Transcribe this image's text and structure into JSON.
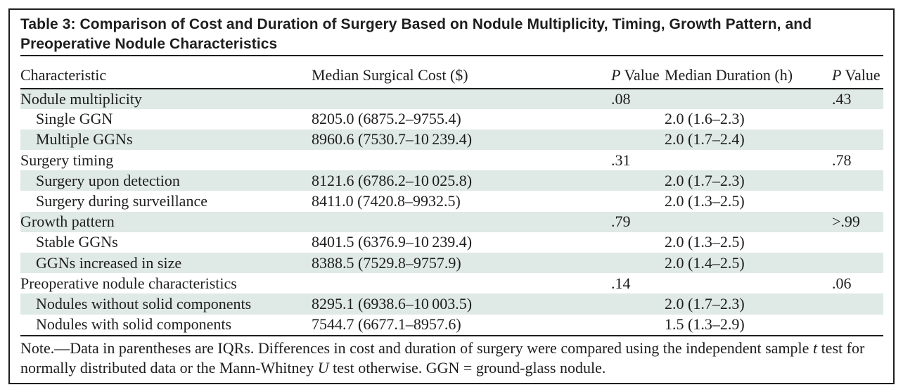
{
  "colors": {
    "ink": "#1e1e1e",
    "row_shade": "#dfe9e5",
    "background": "#ffffff"
  },
  "title": "Table 3: Comparison of Cost and Duration of Surgery Based on Nodule Multiplicity, Timing, Growth Pattern, and Preoperative Nodule Characteristics",
  "columns": [
    {
      "label": "Characteristic"
    },
    {
      "label": "Median Surgical Cost ($)"
    },
    {
      "italic_prefix": "P",
      "label": " Value"
    },
    {
      "label": "Median Duration (h)"
    },
    {
      "italic_prefix": "P",
      "label": " Value"
    }
  ],
  "rows": [
    {
      "label": "Nodule multiplicity",
      "indent": false,
      "cost": "",
      "p_cost": ".08",
      "duration": "",
      "p_duration": ".43"
    },
    {
      "label": "Single GGN",
      "indent": true,
      "cost": "8205.0 (6875.2–9755.4)",
      "p_cost": "",
      "duration": "2.0 (1.6–2.3)",
      "p_duration": ""
    },
    {
      "label": "Multiple GGNs",
      "indent": true,
      "cost": "8960.6 (7530.7–10 239.4)",
      "p_cost": "",
      "duration": "2.0 (1.7–2.4)",
      "p_duration": ""
    },
    {
      "label": "Surgery timing",
      "indent": false,
      "cost": "",
      "p_cost": ".31",
      "duration": "",
      "p_duration": ".78"
    },
    {
      "label": "Surgery upon detection",
      "indent": true,
      "cost": "8121.6 (6786.2–10 025.8)",
      "p_cost": "",
      "duration": "2.0 (1.7–2.3)",
      "p_duration": ""
    },
    {
      "label": "Surgery during surveillance",
      "indent": true,
      "cost": "8411.0 (7420.8–9932.5)",
      "p_cost": "",
      "duration": "2.0 (1.3–2.5)",
      "p_duration": ""
    },
    {
      "label": "Growth pattern",
      "indent": false,
      "cost": "",
      "p_cost": ".79",
      "duration": "",
      "p_duration": ">.99"
    },
    {
      "label": "Stable GGNs",
      "indent": true,
      "cost": "8401.5 (6376.9–10 239.4)",
      "p_cost": "",
      "duration": "2.0 (1.3–2.5)",
      "p_duration": ""
    },
    {
      "label": "GGNs increased in size",
      "indent": true,
      "cost": "8388.5 (7529.8–9757.9)",
      "p_cost": "",
      "duration": "2.0 (1.4–2.5)",
      "p_duration": ""
    },
    {
      "label": "Preoperative nodule characteristics",
      "indent": false,
      "cost": "",
      "p_cost": ".14",
      "duration": "",
      "p_duration": ".06"
    },
    {
      "label": "Nodules without solid components",
      "indent": true,
      "cost": "8295.1 (6938.6–10 003.5)",
      "p_cost": "",
      "duration": "2.0 (1.7–2.3)",
      "p_duration": ""
    },
    {
      "label": "Nodules with solid components",
      "indent": true,
      "cost": "7544.7 (6677.1–8957.6)",
      "p_cost": "",
      "duration": "1.5 (1.3–2.9)",
      "p_duration": ""
    }
  ],
  "note": {
    "line1_a": "Note.—Data in parentheses are IQRs. Differences in cost and duration of surgery were compared using the independent sample ",
    "line1_italic": "t",
    "line1_b": " test for",
    "line2_a": "normally distributed data or the Mann-Whitney ",
    "line2_italic": "U",
    "line2_b": " test otherwise. GGN = ground-glass nodule."
  }
}
